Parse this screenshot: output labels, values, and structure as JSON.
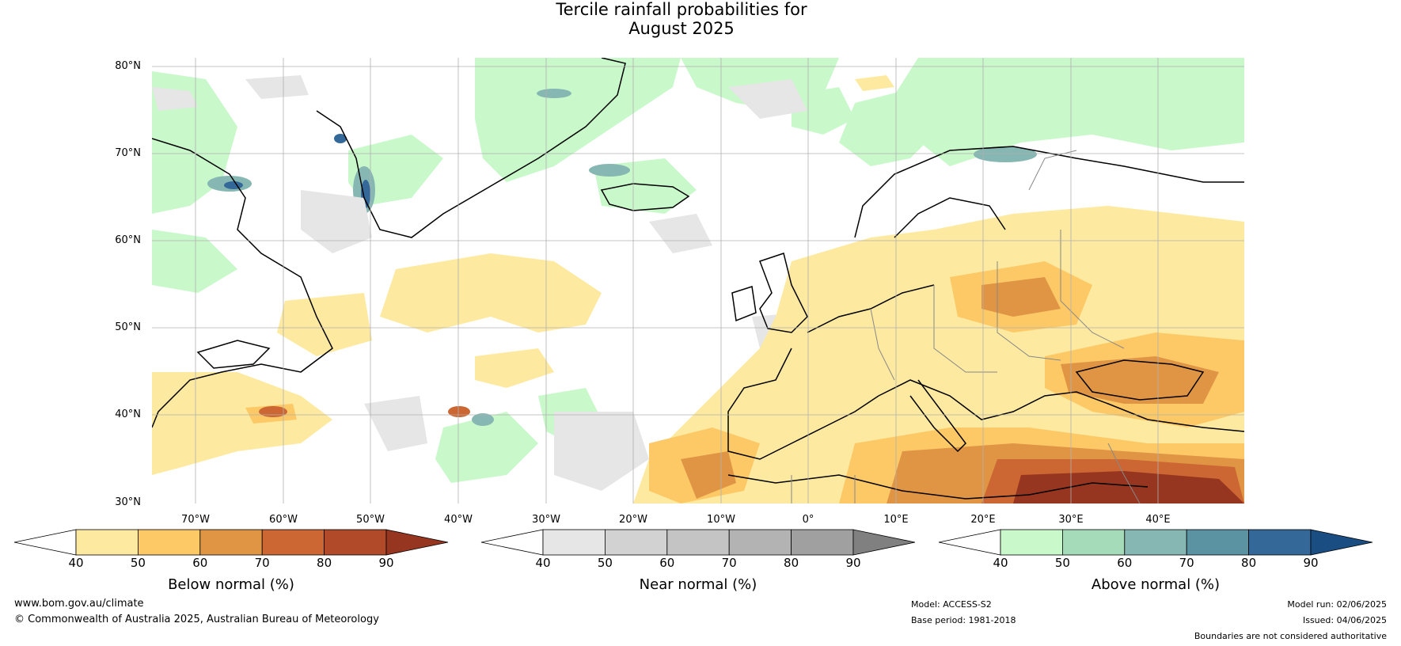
{
  "title_line1": "Tercile rainfall probabilities for",
  "title_line2": "August 2025",
  "lat_labels": [
    "80°N",
    "70°N",
    "60°N",
    "50°N",
    "40°N",
    "30°N"
  ],
  "lon_labels": [
    "70°W",
    "60°W",
    "50°W",
    "40°W",
    "30°W",
    "20°W",
    "10°W",
    "0°",
    "10°E",
    "20°E",
    "30°E",
    "40°E"
  ],
  "colorbars": [
    {
      "label": "Below normal (%)",
      "ticks": [
        "40",
        "50",
        "60",
        "70",
        "80",
        "90"
      ],
      "colors": [
        "#ffffff",
        "#fdeaa0",
        "#fdc966",
        "#e09545",
        "#cc6633",
        "#b04a28",
        "#963520"
      ]
    },
    {
      "label": "Near normal (%)",
      "ticks": [
        "40",
        "50",
        "60",
        "70",
        "80",
        "90"
      ],
      "colors": [
        "#ffffff",
        "#e6e6e6",
        "#d2d2d2",
        "#c4c4c4",
        "#b3b3b3",
        "#a0a0a0",
        "#808080"
      ]
    },
    {
      "label": "Above normal (%)",
      "ticks": [
        "40",
        "50",
        "60",
        "70",
        "80",
        "90"
      ],
      "colors": [
        "#ffffff",
        "#c9f8cb",
        "#a5dbb9",
        "#86b7b2",
        "#5c93a3",
        "#336899",
        "#1a4d82"
      ]
    }
  ],
  "footer": {
    "website": "www.bom.gov.au/climate",
    "copyright": "© Commonwealth of Australia 2025, Australian Bureau of Meteorology",
    "model": "Model: ACCESS-S2",
    "base_period": "Base period: 1981-2018",
    "model_run": "Model run: 02/06/2025",
    "issued": "Issued: 04/06/2025",
    "disclaimer": "Boundaries are not considered authoritative"
  },
  "colors": {
    "below_light": "#fdeaa0",
    "below_mid": "#fdc966",
    "below_dark": "#cc6633",
    "below_darkest": "#963520",
    "near_light": "#e6e6e6",
    "above_light": "#c9f8cb",
    "above_mid": "#86b7b2"
  }
}
